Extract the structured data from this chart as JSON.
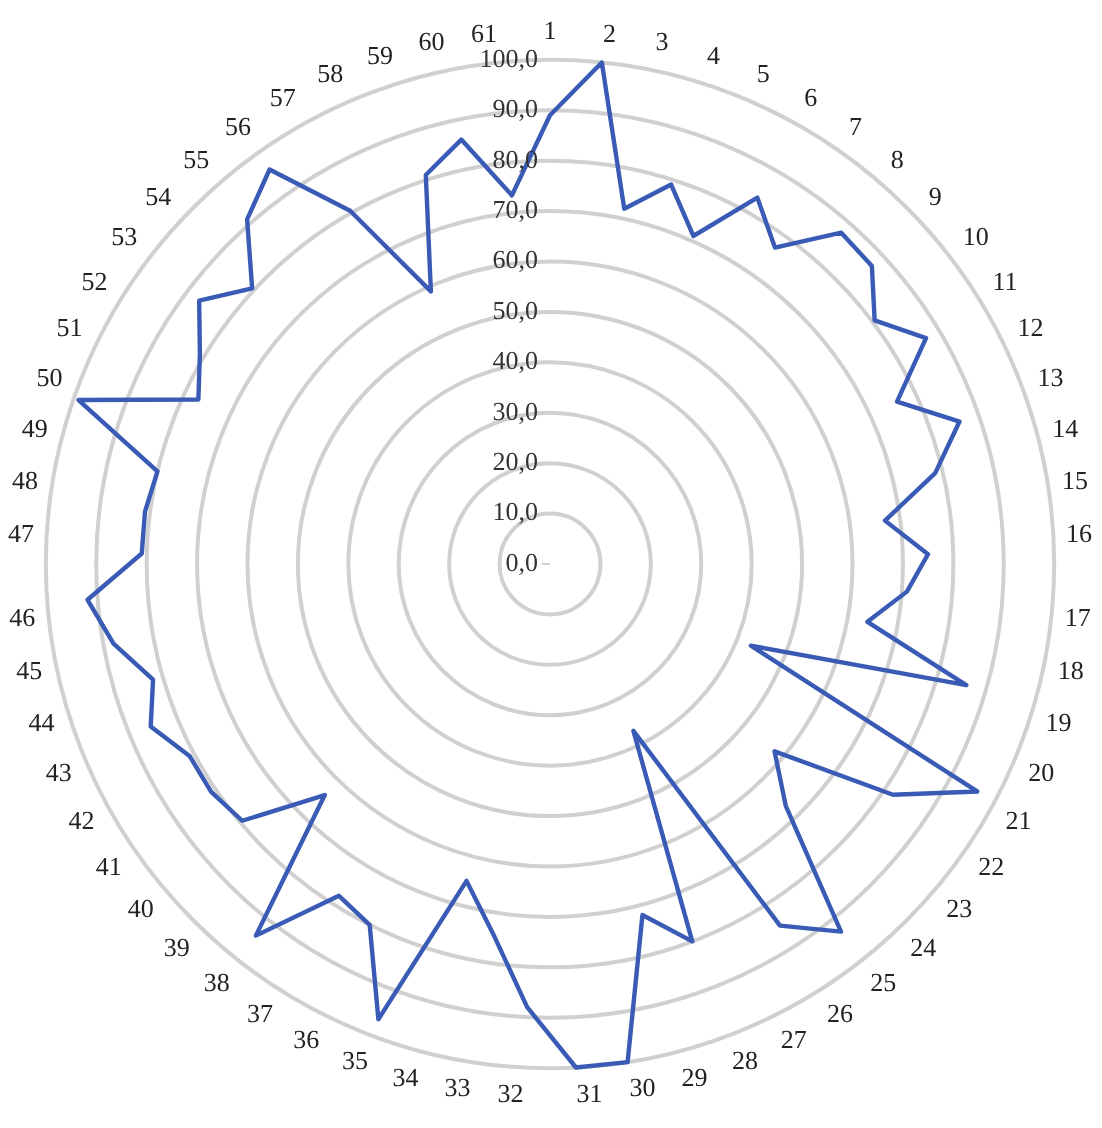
{
  "chart_data": {
    "type": "radar",
    "categories": [
      "1",
      "2",
      "3",
      "4",
      "5",
      "6",
      "7",
      "8",
      "9",
      "10",
      "11",
      "12",
      "13",
      "14",
      "15",
      "16",
      "17",
      "18",
      "19",
      "20",
      "21",
      "22",
      "23",
      "24",
      "25",
      "26",
      "27",
      "28",
      "29",
      "30",
      "31",
      "32",
      "33",
      "34",
      "35",
      "36",
      "37",
      "38",
      "39",
      "40",
      "41",
      "42",
      "43",
      "44",
      "45",
      "46",
      "47",
      "48",
      "49",
      "50",
      "51",
      "52",
      "53",
      "54",
      "55",
      "56",
      "57",
      "58",
      "59",
      "60",
      "61"
    ],
    "series": [
      {
        "color": "#3a5bb5",
        "values": [
          89,
          100,
          72,
          79,
          71,
          83.5,
          77,
          87.5,
          87,
          80.5,
          87,
          76,
          86,
          78.5,
          67,
          75,
          71,
          64,
          86,
          43,
          96,
          82,
          58,
          67,
          93,
          85,
          37,
          80,
          72,
          100,
          100,
          88,
          74,
          65,
          96.5,
          80,
          78,
          94,
          64,
          79.5,
          81,
          81,
          85.5,
          82,
          88,
          92,
          81,
          81,
          80,
          99,
          77,
          81,
          87,
          80.5,
          91,
          96,
          80.5,
          59,
          81,
          86,
          73.5
        ]
      }
    ],
    "ylim": [
      0,
      100
    ],
    "yticks": [
      {
        "value": 0,
        "label": "0,0"
      },
      {
        "value": 10,
        "label": "10,0"
      },
      {
        "value": 20,
        "label": "20,0"
      },
      {
        "value": 30,
        "label": "30,0"
      },
      {
        "value": 40,
        "label": "40,0"
      },
      {
        "value": 50,
        "label": "50,0"
      },
      {
        "value": 60,
        "label": "60,0"
      },
      {
        "value": 70,
        "label": "70,0"
      },
      {
        "value": 80,
        "label": "80,0"
      },
      {
        "value": 90,
        "label": "90,0"
      },
      {
        "value": 100,
        "label": "100,0"
      }
    ],
    "grid": true,
    "marker": "none"
  }
}
